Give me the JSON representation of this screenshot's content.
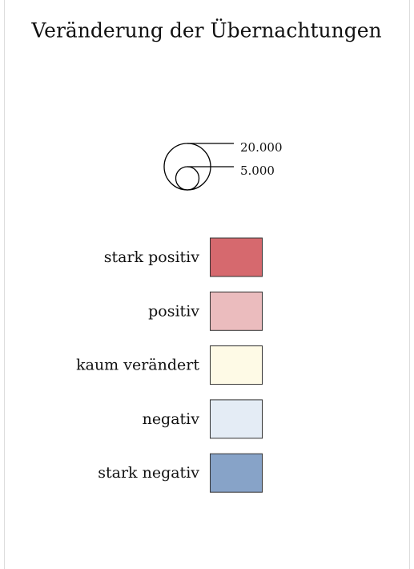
{
  "title": "Veränderung der Übernachtungen",
  "size_legend": [
    {
      "value": 20000,
      "label": "20.000"
    },
    {
      "value": 5000,
      "label": "5.000"
    }
  ],
  "classes": [
    {
      "label": "stark positiv",
      "color": "#d6696e"
    },
    {
      "label": "positiv",
      "color": "#ebbcbe"
    },
    {
      "label": "kaum verändert",
      "color": "#fefae6"
    },
    {
      "label": "negativ",
      "color": "#e4ecf5"
    },
    {
      "label": "stark negativ",
      "color": "#87a3c8"
    }
  ]
}
